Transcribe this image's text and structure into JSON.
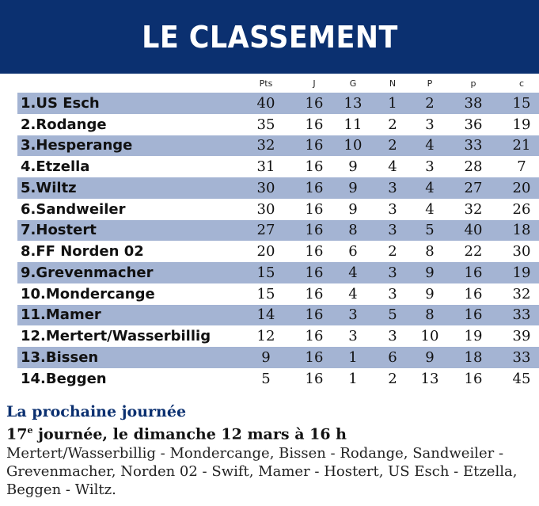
{
  "title": "LE CLASSEMENT",
  "columns": [
    "Pts",
    "J",
    "G",
    "N",
    "P",
    "p",
    "c"
  ],
  "rows": [
    {
      "rank": "1.",
      "team": "US Esch",
      "pts": "40",
      "j": "16",
      "g": "13",
      "n": "1",
      "p": "2",
      "pp": "38",
      "c": "15"
    },
    {
      "rank": "2.",
      "team": "Rodange",
      "pts": "35",
      "j": "16",
      "g": "11",
      "n": "2",
      "p": "3",
      "pp": "36",
      "c": "19"
    },
    {
      "rank": "3.",
      "team": "Hesperange",
      "pts": "32",
      "j": "16",
      "g": "10",
      "n": "2",
      "p": "4",
      "pp": "33",
      "c": "21"
    },
    {
      "rank": "4.",
      "team": "Etzella",
      "pts": "31",
      "j": "16",
      "g": "9",
      "n": "4",
      "p": "3",
      "pp": "28",
      "c": "7"
    },
    {
      "rank": "5.",
      "team": "Wiltz",
      "pts": "30",
      "j": "16",
      "g": "9",
      "n": "3",
      "p": "4",
      "pp": "27",
      "c": "20"
    },
    {
      "rank": "6.",
      "team": "Sandweiler",
      "pts": "30",
      "j": "16",
      "g": "9",
      "n": "3",
      "p": "4",
      "pp": "32",
      "c": "26"
    },
    {
      "rank": "7.",
      "team": "Hostert",
      "pts": "27",
      "j": "16",
      "g": "8",
      "n": "3",
      "p": "5",
      "pp": "40",
      "c": "18"
    },
    {
      "rank": "8.",
      "team": "FF Norden 02",
      "pts": "20",
      "j": "16",
      "g": "6",
      "n": "2",
      "p": "8",
      "pp": "22",
      "c": "30"
    },
    {
      "rank": "9.",
      "team": "Grevenmacher",
      "pts": "15",
      "j": "16",
      "g": "4",
      "n": "3",
      "p": "9",
      "pp": "16",
      "c": "19"
    },
    {
      "rank": "10.",
      "team": "Mondercange",
      "pts": "15",
      "j": "16",
      "g": "4",
      "n": "3",
      "p": "9",
      "pp": "16",
      "c": "32"
    },
    {
      "rank": "11.",
      "team": "Mamer",
      "pts": "14",
      "j": "16",
      "g": "3",
      "n": "5",
      "p": "8",
      "pp": "16",
      "c": "33"
    },
    {
      "rank": "12.",
      "team": "Mertert/Wasserbillig",
      "pts": "12",
      "j": "16",
      "g": "3",
      "n": "3",
      "p": "10",
      "pp": "19",
      "c": "39"
    },
    {
      "rank": "13.",
      "team": "Bissen",
      "pts": "9",
      "j": "16",
      "g": "1",
      "n": "6",
      "p": "9",
      "pp": "18",
      "c": "33"
    },
    {
      "rank": "14.",
      "team": "Beggen",
      "pts": "5",
      "j": "16",
      "g": "1",
      "n": "2",
      "p": "13",
      "pp": "16",
      "c": "45"
    }
  ],
  "next": {
    "subtitle": "La prochaine journée",
    "round_num": "17",
    "round_sup": "e",
    "round_text": " journée, le dimanche 12 mars à 16 h",
    "fixtures": "Mertert/Wasserbillig - Mondercange, Bissen - Rodange, Sandweiler - Grevenmacher, Norden 02 - Swift, Mamer - Hostert, US Esch - Etzella, Beggen - Wiltz."
  },
  "colors": {
    "header_bg": "#0b3070",
    "row_shade": "#a4b4d3"
  }
}
